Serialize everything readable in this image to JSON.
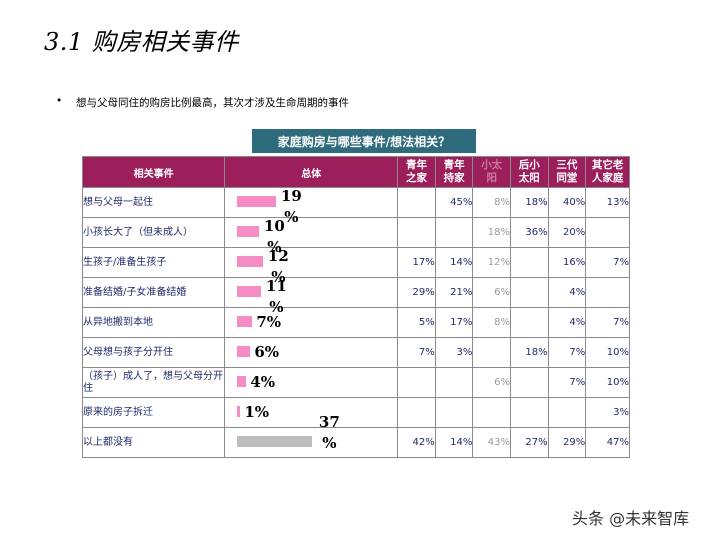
{
  "title": "3.1 购房相关事件",
  "bullet": "想与父母同住的购房比例最高，其次才涉及生命周期的事件",
  "banner": "家庭购房与哪些事件/想法相关？",
  "headers": {
    "event": "相关事件",
    "total": "总体",
    "cols": [
      {
        "line1": "青年",
        "line2": "之家",
        "dim": false
      },
      {
        "line1": "青年",
        "line2": "持家",
        "dim": false
      },
      {
        "line1": "小太",
        "line2": "阳",
        "dim": true
      },
      {
        "line1": "后小",
        "line2": "太阳",
        "dim": false
      },
      {
        "line1": "三代",
        "line2": "同堂",
        "dim": false
      },
      {
        "line1": "其它老",
        "line2": "人家庭",
        "dim": false
      }
    ]
  },
  "rows": [
    {
      "event": "想与父母一起住",
      "total": 19,
      "total_label": "19 %",
      "cells": [
        "",
        "45%",
        "8%",
        "18%",
        "40%",
        "13%"
      ],
      "color": "pink"
    },
    {
      "event": "小孩长大了（但未成人）",
      "total": 10,
      "total_label": "10 %",
      "cells": [
        "",
        "",
        "18%",
        "36%",
        "20%",
        ""
      ],
      "color": "pink"
    },
    {
      "event": "生孩子/准备生孩子",
      "total": 12,
      "total_label": "12 %",
      "cells": [
        "17%",
        "14%",
        "12%",
        "",
        "16%",
        "7%"
      ],
      "color": "pink"
    },
    {
      "event": "准备结婚/子女准备结婚",
      "total": 11,
      "total_label": "11 %",
      "cells": [
        "29%",
        "21%",
        "6%",
        "",
        "4%",
        ""
      ],
      "color": "pink"
    },
    {
      "event": "从异地搬到本地",
      "total": 7,
      "total_label": "7%",
      "cells": [
        "5%",
        "17%",
        "8%",
        "",
        "4%",
        "7%"
      ],
      "color": "pink"
    },
    {
      "event": "父母想与孩子分开住",
      "total": 6,
      "total_label": "6%",
      "cells": [
        "7%",
        "3%",
        "",
        "18%",
        "7%",
        "10%"
      ],
      "color": "pink"
    },
    {
      "event": "（孩子）成人了，想与父母分开住",
      "total": 4,
      "total_label": "4%",
      "cells": [
        "",
        "",
        "6%",
        "",
        "7%",
        "10%"
      ],
      "color": "pink"
    },
    {
      "event": "原来的房子拆迁",
      "total": 1,
      "total_label": "1%",
      "cells": [
        "",
        "",
        "",
        "",
        "",
        "3%"
      ],
      "color": "pink"
    },
    {
      "event": "以上都没有",
      "total": 37,
      "total_label": "37 %",
      "cells": [
        "42%",
        "14%",
        "43%",
        "27%",
        "29%",
        "47%"
      ],
      "color": "gray"
    }
  ],
  "watermark": "头条 @未来智库"
}
